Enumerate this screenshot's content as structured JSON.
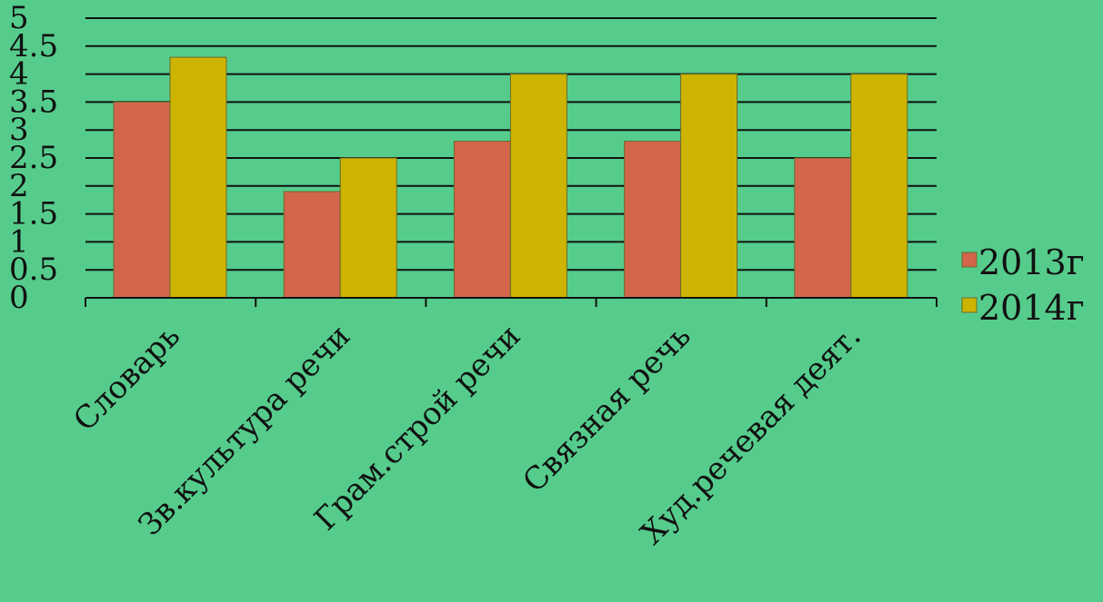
{
  "chart_data": {
    "type": "bar",
    "categories": [
      "Словарь",
      "Зв.культура речи",
      "Грам.строй речи",
      "Связная речь",
      "Худ.речевая деят."
    ],
    "series": [
      {
        "name": "2013г",
        "values": [
          3.5,
          1.9,
          2.8,
          2.8,
          2.5
        ],
        "color": "#D2654C"
      },
      {
        "name": "2014г",
        "values": [
          4.3,
          2.5,
          4.0,
          4.0,
          4.0
        ],
        "color": "#CDB400"
      }
    ],
    "y_ticks": [
      "0",
      "0.5",
      "1",
      "1.5",
      "2",
      "2.5",
      "3",
      "3.5",
      "4",
      "4.5",
      "5"
    ],
    "ylim": [
      0,
      5
    ],
    "y_step": 0.5,
    "grid": true,
    "legend_position": "right",
    "title": "",
    "xlabel": "",
    "ylabel": ""
  },
  "colors": {
    "background": "#56CC8C",
    "gridline": "#111111",
    "bar_outline": "#6B6B2A"
  }
}
